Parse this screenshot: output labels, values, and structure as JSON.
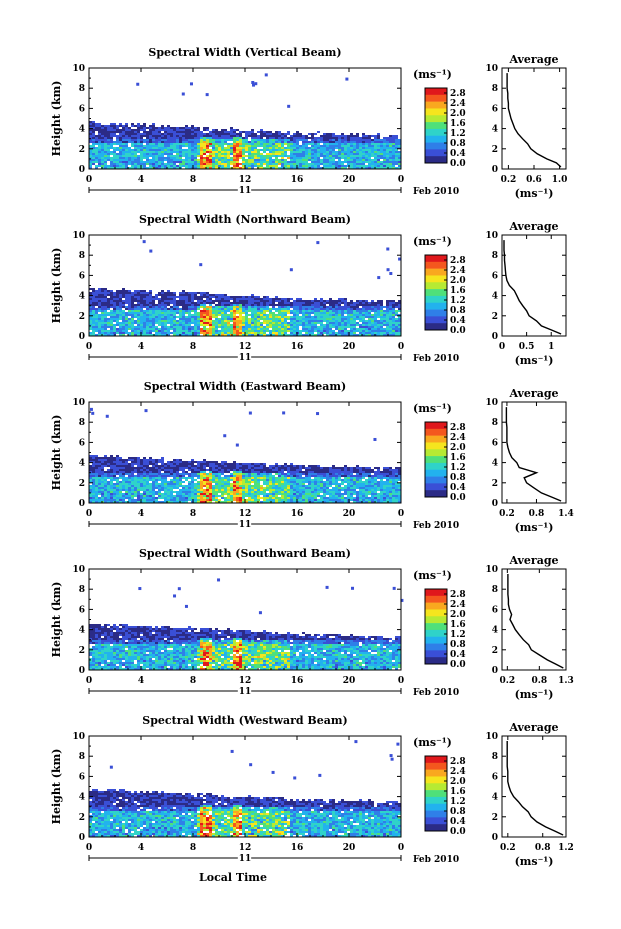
{
  "figure": {
    "xlabel": "Local Time"
  },
  "date_label": {
    "day": "11",
    "month_year": "Feb 2010"
  },
  "colorbar": {
    "unit_label": "(ms⁻¹)",
    "ticks": [
      "2.8",
      "2.4",
      "2.0",
      "1.6",
      "1.2",
      "0.8",
      "0.4",
      "0.0"
    ],
    "range": [
      0.0,
      3.0
    ],
    "colors": [
      "#2b2b86",
      "#3a4fd6",
      "#2f7fe8",
      "#22b2ee",
      "#2fd3c9",
      "#4fe07a",
      "#b6ea33",
      "#f5e51e",
      "#f9a81f",
      "#f4571e",
      "#e0181c"
    ]
  },
  "average_title": "Average",
  "average_xlabel": "(ms⁻¹)",
  "chart_data": [
    {
      "type": "heatmap",
      "title": "Spectral Width (Vertical Beam)",
      "ylabel": "Height (km)",
      "x_ticks": [
        "0",
        "4",
        "8",
        "12",
        "16",
        "20",
        "0"
      ],
      "y_ticks": [
        "0",
        "2",
        "4",
        "6",
        "8",
        "10"
      ],
      "xlim": [
        0,
        24
      ],
      "ylim": [
        0,
        10
      ],
      "echo_top_km": [
        4.6,
        4.2,
        3.6,
        3.3
      ],
      "average_profile": {
        "x_ticks": [
          "0.2",
          "0.6",
          "1.0"
        ],
        "xlim": [
          0.1,
          1.1
        ],
        "ylim": [
          0,
          10
        ],
        "height_km": [
          0.2,
          0.6,
          1.0,
          1.5,
          2.0,
          2.5,
          3.0,
          3.5,
          4.0,
          4.5,
          5.0,
          5.5,
          6.0,
          6.5,
          7.0,
          7.5,
          8.0,
          8.5,
          9.0,
          9.5
        ],
        "value": [
          1.02,
          0.95,
          0.8,
          0.65,
          0.55,
          0.5,
          0.42,
          0.35,
          0.3,
          0.27,
          0.24,
          0.22,
          0.2,
          0.2,
          0.19,
          0.19,
          0.18,
          0.18,
          0.18,
          0.18
        ]
      }
    },
    {
      "type": "heatmap",
      "title": "Spectral Width (Northward Beam)",
      "ylabel": "Height (km)",
      "x_ticks": [
        "0",
        "4",
        "8",
        "12",
        "16",
        "20",
        "0"
      ],
      "y_ticks": [
        "0",
        "2",
        "4",
        "6",
        "8",
        "10"
      ],
      "xlim": [
        0,
        24
      ],
      "ylim": [
        0,
        10
      ],
      "echo_top_km": [
        4.7,
        4.3,
        3.7,
        3.4
      ],
      "average_profile": {
        "x_ticks": [
          "0",
          "0.5",
          "1"
        ],
        "xlim": [
          0,
          1.3
        ],
        "ylim": [
          0,
          10
        ],
        "height_km": [
          0.2,
          0.6,
          1.0,
          1.5,
          2.0,
          2.5,
          3.0,
          3.5,
          4.0,
          4.5,
          5.0,
          5.5,
          6.0,
          6.5,
          7.0,
          7.5,
          8.0,
          8.5,
          9.0,
          9.5
        ],
        "value": [
          1.2,
          1.0,
          0.8,
          0.7,
          0.55,
          0.5,
          0.42,
          0.35,
          0.3,
          0.25,
          0.15,
          0.1,
          0.08,
          0.07,
          0.06,
          0.05,
          0.05,
          0.04,
          0.04,
          0.04
        ]
      }
    },
    {
      "type": "heatmap",
      "title": "Spectral Width (Eastward Beam)",
      "ylabel": "Height (km)",
      "x_ticks": [
        "0",
        "4",
        "8",
        "12",
        "16",
        "20",
        "0"
      ],
      "y_ticks": [
        "0",
        "2",
        "4",
        "6",
        "8",
        "10"
      ],
      "xlim": [
        0,
        24
      ],
      "ylim": [
        0,
        10
      ],
      "echo_top_km": [
        4.7,
        4.2,
        3.7,
        3.5
      ],
      "average_profile": {
        "x_ticks": [
          "0.2",
          "0.8",
          "1.4"
        ],
        "xlim": [
          0.1,
          1.4
        ],
        "ylim": [
          0,
          10
        ],
        "height_km": [
          0.2,
          0.6,
          1.0,
          1.5,
          2.0,
          2.5,
          3.0,
          3.5,
          4.0,
          4.5,
          5.0,
          5.5,
          6.0,
          6.5,
          7.0,
          7.5,
          8.0,
          8.5,
          9.0,
          9.5
        ],
        "value": [
          1.3,
          1.1,
          0.9,
          0.75,
          0.6,
          0.55,
          0.8,
          0.45,
          0.4,
          0.3,
          0.25,
          0.22,
          0.2,
          0.2,
          0.2,
          0.2,
          0.19,
          0.19,
          0.19,
          0.19
        ]
      }
    },
    {
      "type": "heatmap",
      "title": "Spectral Width (Southward Beam)",
      "ylabel": "Height (km)",
      "x_ticks": [
        "0",
        "4",
        "8",
        "12",
        "16",
        "20",
        "0"
      ],
      "y_ticks": [
        "0",
        "2",
        "4",
        "6",
        "8",
        "10"
      ],
      "xlim": [
        0,
        24
      ],
      "ylim": [
        0,
        10
      ],
      "echo_top_km": [
        4.6,
        4.2,
        3.6,
        3.3
      ],
      "average_profile": {
        "x_ticks": [
          "0.2",
          "0.8",
          "1.3"
        ],
        "xlim": [
          0.1,
          1.3
        ],
        "ylim": [
          0,
          10
        ],
        "height_km": [
          0.2,
          0.6,
          1.0,
          1.5,
          2.0,
          2.5,
          3.0,
          3.5,
          4.0,
          4.5,
          5.0,
          5.5,
          6.0,
          6.5,
          7.0,
          7.5,
          8.0,
          8.5,
          9.0,
          9.5
        ],
        "value": [
          1.25,
          1.1,
          0.95,
          0.8,
          0.65,
          0.6,
          0.5,
          0.42,
          0.35,
          0.3,
          0.25,
          0.28,
          0.24,
          0.22,
          0.22,
          0.21,
          0.21,
          0.21,
          0.21,
          0.21
        ]
      }
    },
    {
      "type": "heatmap",
      "title": "Spectral Width (Westward Beam)",
      "ylabel": "Height (km)",
      "x_ticks": [
        "0",
        "4",
        "8",
        "12",
        "16",
        "20",
        "0"
      ],
      "y_ticks": [
        "0",
        "2",
        "4",
        "6",
        "8",
        "10"
      ],
      "xlim": [
        0,
        24
      ],
      "ylim": [
        0,
        10
      ],
      "echo_top_km": [
        4.7,
        4.3,
        3.7,
        3.5
      ],
      "average_profile": {
        "x_ticks": [
          "0.2",
          "0.8",
          "1.2"
        ],
        "xlim": [
          0.1,
          1.2
        ],
        "ylim": [
          0,
          10
        ],
        "height_km": [
          0.2,
          0.6,
          1.0,
          1.5,
          2.0,
          2.5,
          3.0,
          3.5,
          4.0,
          4.5,
          5.0,
          5.5,
          6.0,
          6.5,
          7.0,
          7.5,
          8.0,
          8.5,
          9.0,
          9.5
        ],
        "value": [
          1.15,
          1.0,
          0.85,
          0.7,
          0.6,
          0.55,
          0.45,
          0.38,
          0.3,
          0.25,
          0.22,
          0.2,
          0.2,
          0.2,
          0.19,
          0.19,
          0.19,
          0.19,
          0.19,
          0.19
        ]
      }
    }
  ]
}
